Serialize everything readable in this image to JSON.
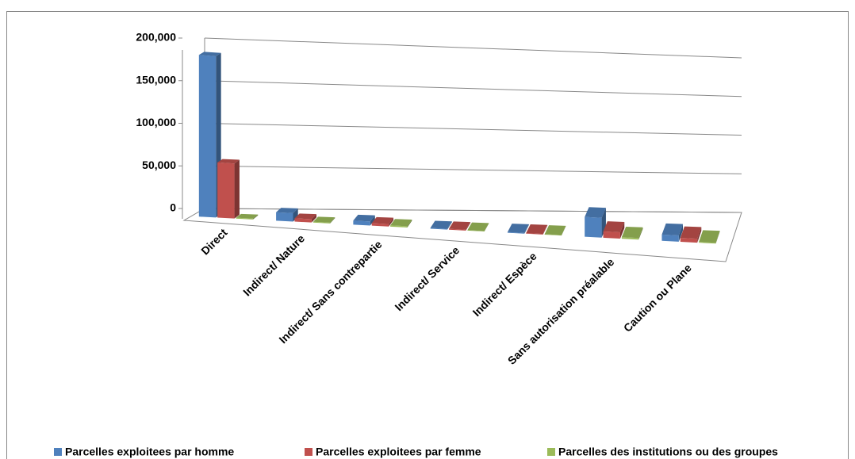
{
  "chart_data": {
    "type": "bar3d",
    "categories": [
      "Direct",
      "Indirect/ Nature",
      "Indirect/ Sans contrepartie",
      "Indirect/ Service",
      "Indirect/ Espèce",
      "Sans autorisation préalable",
      "Caution ou Plane"
    ],
    "series": [
      {
        "name": "Parcelles exploitees par homme",
        "color": "#4f81bd",
        "values": [
          190000,
          10000,
          5000,
          1000,
          800,
          25000,
          8000
        ]
      },
      {
        "name": "Parcelles exploitees par femme",
        "color": "#c0504d",
        "values": [
          65000,
          4000,
          3000,
          1000,
          800,
          8000,
          5000
        ]
      },
      {
        "name": "Parcelles des institutions ou des groupes",
        "color": "#9bbb59",
        "values": [
          1000,
          1000,
          1500,
          500,
          500,
          2000,
          1000
        ]
      }
    ],
    "ylim": [
      0,
      200000
    ],
    "yticks": [
      0,
      {
        "value": 50000,
        "label": "50,000"
      },
      {
        "value": 100000,
        "label": "100,000"
      },
      {
        "value": 150000,
        "label": "150,000"
      },
      {
        "value": 200000,
        "label": "200,000"
      }
    ],
    "grid": true,
    "legend": "bottom"
  }
}
